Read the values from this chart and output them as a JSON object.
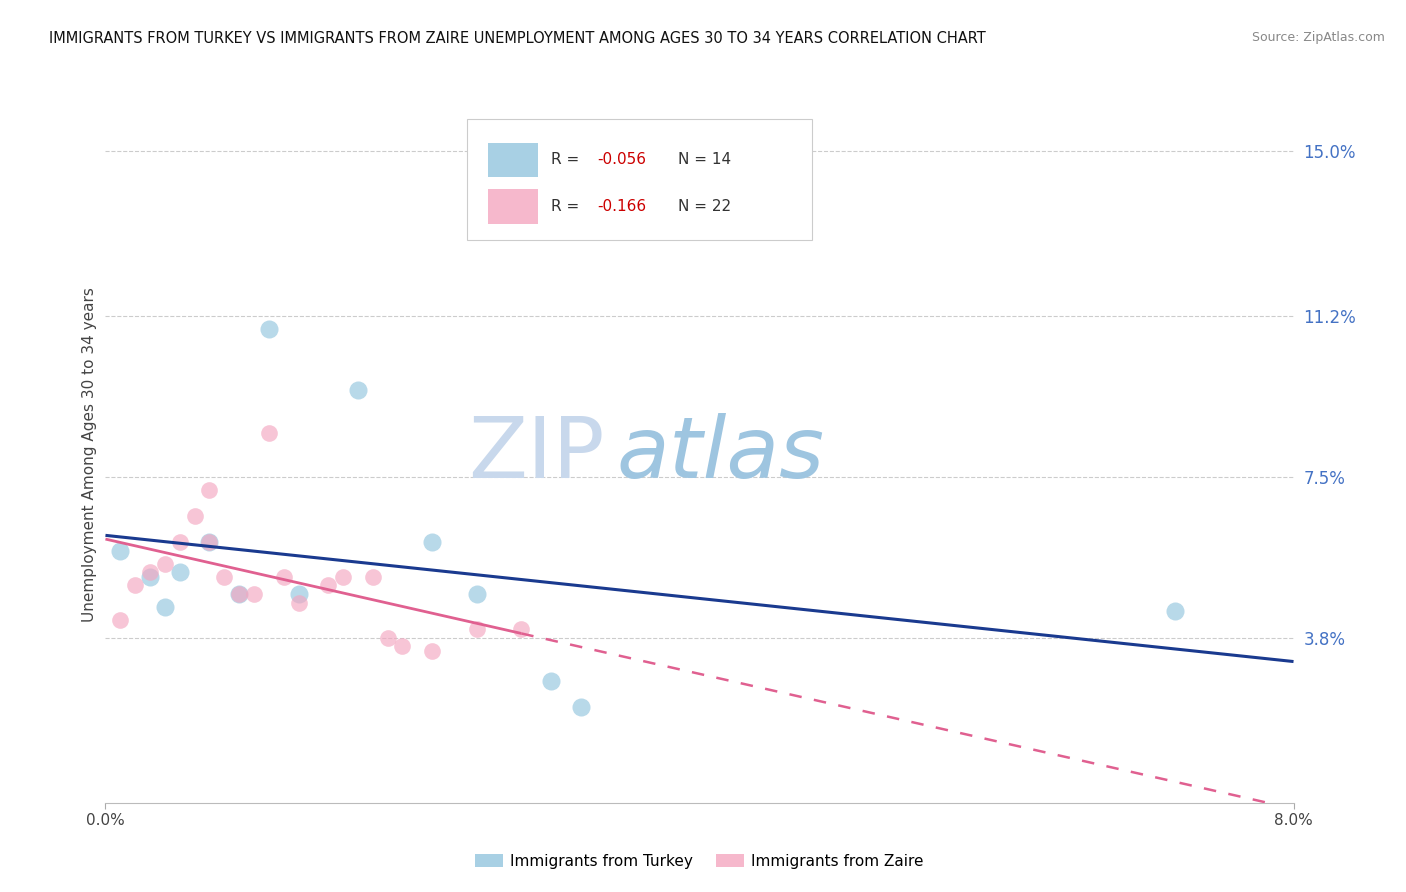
{
  "title": "IMMIGRANTS FROM TURKEY VS IMMIGRANTS FROM ZAIRE UNEMPLOYMENT AMONG AGES 30 TO 34 YEARS CORRELATION CHART",
  "source": "Source: ZipAtlas.com",
  "ylabel": "Unemployment Among Ages 30 to 34 years",
  "xlim": [
    0.0,
    0.08
  ],
  "ylim": [
    0.0,
    0.16
  ],
  "xtick_vals": [
    0.0,
    0.08
  ],
  "xtick_labels": [
    "0.0%",
    "8.0%"
  ],
  "ytick_positions": [
    0.038,
    0.075,
    0.112,
    0.15
  ],
  "ytick_labels": [
    "3.8%",
    "7.5%",
    "11.2%",
    "15.0%"
  ],
  "turkey_points": [
    [
      0.001,
      0.058
    ],
    [
      0.003,
      0.052
    ],
    [
      0.004,
      0.045
    ],
    [
      0.005,
      0.053
    ],
    [
      0.007,
      0.06
    ],
    [
      0.009,
      0.048
    ],
    [
      0.011,
      0.109
    ],
    [
      0.013,
      0.048
    ],
    [
      0.017,
      0.095
    ],
    [
      0.022,
      0.06
    ],
    [
      0.025,
      0.048
    ],
    [
      0.03,
      0.028
    ],
    [
      0.032,
      0.022
    ],
    [
      0.072,
      0.044
    ]
  ],
  "zaire_points": [
    [
      0.001,
      0.042
    ],
    [
      0.002,
      0.05
    ],
    [
      0.003,
      0.053
    ],
    [
      0.004,
      0.055
    ],
    [
      0.005,
      0.06
    ],
    [
      0.006,
      0.066
    ],
    [
      0.007,
      0.06
    ],
    [
      0.007,
      0.072
    ],
    [
      0.008,
      0.052
    ],
    [
      0.009,
      0.048
    ],
    [
      0.01,
      0.048
    ],
    [
      0.011,
      0.085
    ],
    [
      0.012,
      0.052
    ],
    [
      0.013,
      0.046
    ],
    [
      0.015,
      0.05
    ],
    [
      0.016,
      0.052
    ],
    [
      0.018,
      0.052
    ],
    [
      0.019,
      0.038
    ],
    [
      0.02,
      0.036
    ],
    [
      0.022,
      0.035
    ],
    [
      0.025,
      0.04
    ],
    [
      0.028,
      0.04
    ]
  ],
  "turkey_scatter_color": "#92c5de",
  "zaire_scatter_color": "#f4a6c0",
  "turkey_line_color": "#1a3a8f",
  "zaire_line_color": "#e06090",
  "right_tick_color": "#4472c4",
  "legend_R1": "R = − 0.056",
  "legend_N1": "N = 14",
  "legend_R2": "R = − 0.166",
  "legend_N2": "N = 22",
  "legend_label1": "Immigrants from Turkey",
  "legend_label2": "Immigrants from Zaire",
  "watermark_zip": "ZIP",
  "watermark_atlas": "atlas",
  "watermark_color_zip": "#c8d8ec",
  "watermark_color_atlas": "#9ec5e0",
  "bg_color": "#ffffff",
  "grid_color": "#cccccc",
  "title_fontsize": 10.5,
  "source_fontsize": 9,
  "tick_fontsize": 11,
  "ylabel_fontsize": 11
}
